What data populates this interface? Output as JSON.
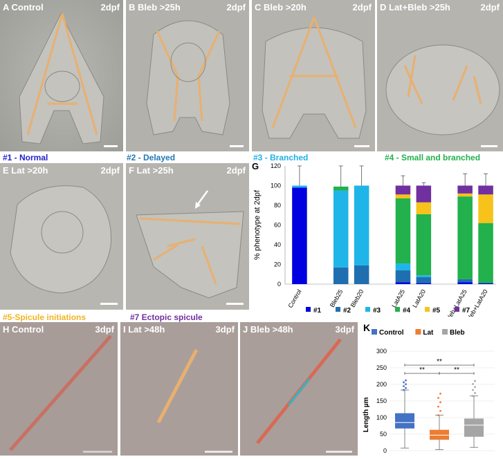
{
  "panels": [
    {
      "label": "A Control",
      "day": "2dpf"
    },
    {
      "label": "B Bleb >25h",
      "day": "2dpf"
    },
    {
      "label": "C Bleb >20h",
      "day": "2dpf"
    },
    {
      "label": "D Lat+Bleb >25h",
      "day": "2dpf"
    },
    {
      "label": "E Lat >20h",
      "day": "2dpf"
    },
    {
      "label": "F Lat >25h",
      "day": "2dpf"
    },
    {
      "label": "H Control",
      "day": "3dpf"
    },
    {
      "label": "I Lat >48h",
      "day": "3dpf"
    },
    {
      "label": "J Bleb >48h",
      "day": "3dpf"
    }
  ],
  "phenotypes": {
    "p1": {
      "text": "#1 - Normal",
      "color": "#1f1fd0"
    },
    "p2": {
      "text": "#2 - Delayed",
      "color": "#1f77b4"
    },
    "p3": {
      "text": "#3 - Branched",
      "color": "#1fb0e8"
    },
    "p4": {
      "text": "#4 - Small and branched",
      "color": "#22b14c"
    },
    "p5": {
      "text": "#5-Spicule initiations",
      "color": "#f2b322"
    },
    "p7": {
      "text": "#7 Ectopic spicule",
      "color": "#7030a0"
    }
  },
  "chartG": {
    "panel_letter": "G",
    "type": "bar",
    "ylabel": "% phenotype at  2dpf",
    "ylim": [
      0,
      120
    ],
    "yticks": [
      0,
      20,
      40,
      60,
      80,
      100,
      120
    ],
    "categories": [
      "Control",
      "Bleb25",
      "Bleb20",
      "LatA25",
      "LatA20",
      "Bleb+LatA25",
      "Bleb+LatA20"
    ],
    "series": [
      {
        "name": "#1",
        "color": "#0000e0",
        "values": [
          98,
          0,
          0,
          2,
          1,
          2,
          1
        ]
      },
      {
        "name": "#2",
        "color": "#1f6fb0",
        "values": [
          0,
          17,
          19,
          12,
          6,
          3,
          0
        ]
      },
      {
        "name": "#3",
        "color": "#1fb5e8",
        "values": [
          2,
          78,
          81,
          7,
          2,
          0,
          0
        ]
      },
      {
        "name": "#4",
        "color": "#22b14c",
        "values": [
          0,
          4,
          0,
          66,
          62,
          84,
          61
        ]
      },
      {
        "name": "#5",
        "color": "#f7c21a",
        "values": [
          0,
          0,
          0,
          4,
          12,
          3,
          29
        ]
      },
      {
        "name": "#7",
        "color": "#7030a0",
        "values": [
          0,
          0,
          0,
          9,
          17,
          8,
          9
        ]
      }
    ],
    "errors_top": [
      120,
      120,
      120,
      110,
      103,
      112,
      112
    ],
    "legend": [
      "#1",
      "#2",
      "#3",
      "#4",
      "#5",
      "#7"
    ]
  },
  "chartK": {
    "panel_letter": "K",
    "type": "box",
    "ylabel": "Length µm",
    "ylim": [
      0,
      300
    ],
    "yticks": [
      0,
      50,
      100,
      150,
      200,
      250,
      300
    ],
    "groups": [
      {
        "name": "Control",
        "color": "#4472c4",
        "whisker_low": 8,
        "q1": 67,
        "median": 85,
        "q3": 113,
        "whisker_high": 183,
        "max": 212
      },
      {
        "name": "Lat",
        "color": "#ed7d31",
        "whisker_low": 3,
        "q1": 33,
        "median": 47,
        "q3": 63,
        "whisker_high": 107,
        "max": 172
      },
      {
        "name": "Bleb",
        "color": "#a5a5a5",
        "whisker_low": 10,
        "q1": 42,
        "median": 77,
        "q3": 97,
        "whisker_high": 165,
        "max": 210
      }
    ],
    "significance": [
      {
        "from": "Control",
        "to": "Bleb",
        "label": "**"
      },
      {
        "from": "Control",
        "to": "Lat",
        "label": "**"
      },
      {
        "from": "Lat",
        "to": "Bleb",
        "label": "**"
      }
    ]
  }
}
